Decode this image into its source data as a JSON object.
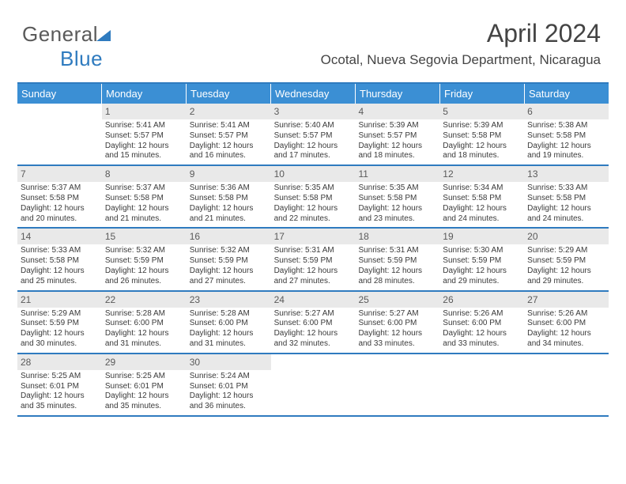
{
  "logo": {
    "text_gray": "General",
    "text_blue": "Blue"
  },
  "title": "April 2024",
  "subtitle": "Ocotal, Nueva Segovia Department, Nicaragua",
  "colors": {
    "header_bg": "#3b8fd4",
    "header_text": "#ffffff",
    "border": "#2f7bbf",
    "daynum_bg": "#e9e9e9",
    "body_text": "#3a3a3a",
    "logo_gray": "#5a5a5a",
    "logo_blue": "#2f7bbf",
    "page_bg": "#ffffff"
  },
  "typography": {
    "title_fontsize": 32,
    "subtitle_fontsize": 17,
    "header_fontsize": 13,
    "daynum_fontsize": 12,
    "body_fontsize": 10,
    "logo_fontsize": 26
  },
  "day_headers": [
    "Sunday",
    "Monday",
    "Tuesday",
    "Wednesday",
    "Thursday",
    "Friday",
    "Saturday"
  ],
  "weeks": [
    [
      {
        "num": "",
        "sunrise": "",
        "sunset": "",
        "daylight": ""
      },
      {
        "num": "1",
        "sunrise": "Sunrise: 5:41 AM",
        "sunset": "Sunset: 5:57 PM",
        "daylight": "Daylight: 12 hours and 15 minutes."
      },
      {
        "num": "2",
        "sunrise": "Sunrise: 5:41 AM",
        "sunset": "Sunset: 5:57 PM",
        "daylight": "Daylight: 12 hours and 16 minutes."
      },
      {
        "num": "3",
        "sunrise": "Sunrise: 5:40 AM",
        "sunset": "Sunset: 5:57 PM",
        "daylight": "Daylight: 12 hours and 17 minutes."
      },
      {
        "num": "4",
        "sunrise": "Sunrise: 5:39 AM",
        "sunset": "Sunset: 5:57 PM",
        "daylight": "Daylight: 12 hours and 18 minutes."
      },
      {
        "num": "5",
        "sunrise": "Sunrise: 5:39 AM",
        "sunset": "Sunset: 5:58 PM",
        "daylight": "Daylight: 12 hours and 18 minutes."
      },
      {
        "num": "6",
        "sunrise": "Sunrise: 5:38 AM",
        "sunset": "Sunset: 5:58 PM",
        "daylight": "Daylight: 12 hours and 19 minutes."
      }
    ],
    [
      {
        "num": "7",
        "sunrise": "Sunrise: 5:37 AM",
        "sunset": "Sunset: 5:58 PM",
        "daylight": "Daylight: 12 hours and 20 minutes."
      },
      {
        "num": "8",
        "sunrise": "Sunrise: 5:37 AM",
        "sunset": "Sunset: 5:58 PM",
        "daylight": "Daylight: 12 hours and 21 minutes."
      },
      {
        "num": "9",
        "sunrise": "Sunrise: 5:36 AM",
        "sunset": "Sunset: 5:58 PM",
        "daylight": "Daylight: 12 hours and 21 minutes."
      },
      {
        "num": "10",
        "sunrise": "Sunrise: 5:35 AM",
        "sunset": "Sunset: 5:58 PM",
        "daylight": "Daylight: 12 hours and 22 minutes."
      },
      {
        "num": "11",
        "sunrise": "Sunrise: 5:35 AM",
        "sunset": "Sunset: 5:58 PM",
        "daylight": "Daylight: 12 hours and 23 minutes."
      },
      {
        "num": "12",
        "sunrise": "Sunrise: 5:34 AM",
        "sunset": "Sunset: 5:58 PM",
        "daylight": "Daylight: 12 hours and 24 minutes."
      },
      {
        "num": "13",
        "sunrise": "Sunrise: 5:33 AM",
        "sunset": "Sunset: 5:58 PM",
        "daylight": "Daylight: 12 hours and 24 minutes."
      }
    ],
    [
      {
        "num": "14",
        "sunrise": "Sunrise: 5:33 AM",
        "sunset": "Sunset: 5:58 PM",
        "daylight": "Daylight: 12 hours and 25 minutes."
      },
      {
        "num": "15",
        "sunrise": "Sunrise: 5:32 AM",
        "sunset": "Sunset: 5:59 PM",
        "daylight": "Daylight: 12 hours and 26 minutes."
      },
      {
        "num": "16",
        "sunrise": "Sunrise: 5:32 AM",
        "sunset": "Sunset: 5:59 PM",
        "daylight": "Daylight: 12 hours and 27 minutes."
      },
      {
        "num": "17",
        "sunrise": "Sunrise: 5:31 AM",
        "sunset": "Sunset: 5:59 PM",
        "daylight": "Daylight: 12 hours and 27 minutes."
      },
      {
        "num": "18",
        "sunrise": "Sunrise: 5:31 AM",
        "sunset": "Sunset: 5:59 PM",
        "daylight": "Daylight: 12 hours and 28 minutes."
      },
      {
        "num": "19",
        "sunrise": "Sunrise: 5:30 AM",
        "sunset": "Sunset: 5:59 PM",
        "daylight": "Daylight: 12 hours and 29 minutes."
      },
      {
        "num": "20",
        "sunrise": "Sunrise: 5:29 AM",
        "sunset": "Sunset: 5:59 PM",
        "daylight": "Daylight: 12 hours and 29 minutes."
      }
    ],
    [
      {
        "num": "21",
        "sunrise": "Sunrise: 5:29 AM",
        "sunset": "Sunset: 5:59 PM",
        "daylight": "Daylight: 12 hours and 30 minutes."
      },
      {
        "num": "22",
        "sunrise": "Sunrise: 5:28 AM",
        "sunset": "Sunset: 6:00 PM",
        "daylight": "Daylight: 12 hours and 31 minutes."
      },
      {
        "num": "23",
        "sunrise": "Sunrise: 5:28 AM",
        "sunset": "Sunset: 6:00 PM",
        "daylight": "Daylight: 12 hours and 31 minutes."
      },
      {
        "num": "24",
        "sunrise": "Sunrise: 5:27 AM",
        "sunset": "Sunset: 6:00 PM",
        "daylight": "Daylight: 12 hours and 32 minutes."
      },
      {
        "num": "25",
        "sunrise": "Sunrise: 5:27 AM",
        "sunset": "Sunset: 6:00 PM",
        "daylight": "Daylight: 12 hours and 33 minutes."
      },
      {
        "num": "26",
        "sunrise": "Sunrise: 5:26 AM",
        "sunset": "Sunset: 6:00 PM",
        "daylight": "Daylight: 12 hours and 33 minutes."
      },
      {
        "num": "27",
        "sunrise": "Sunrise: 5:26 AM",
        "sunset": "Sunset: 6:00 PM",
        "daylight": "Daylight: 12 hours and 34 minutes."
      }
    ],
    [
      {
        "num": "28",
        "sunrise": "Sunrise: 5:25 AM",
        "sunset": "Sunset: 6:01 PM",
        "daylight": "Daylight: 12 hours and 35 minutes."
      },
      {
        "num": "29",
        "sunrise": "Sunrise: 5:25 AM",
        "sunset": "Sunset: 6:01 PM",
        "daylight": "Daylight: 12 hours and 35 minutes."
      },
      {
        "num": "30",
        "sunrise": "Sunrise: 5:24 AM",
        "sunset": "Sunset: 6:01 PM",
        "daylight": "Daylight: 12 hours and 36 minutes."
      },
      {
        "num": "",
        "sunrise": "",
        "sunset": "",
        "daylight": ""
      },
      {
        "num": "",
        "sunrise": "",
        "sunset": "",
        "daylight": ""
      },
      {
        "num": "",
        "sunrise": "",
        "sunset": "",
        "daylight": ""
      },
      {
        "num": "",
        "sunrise": "",
        "sunset": "",
        "daylight": ""
      }
    ]
  ]
}
